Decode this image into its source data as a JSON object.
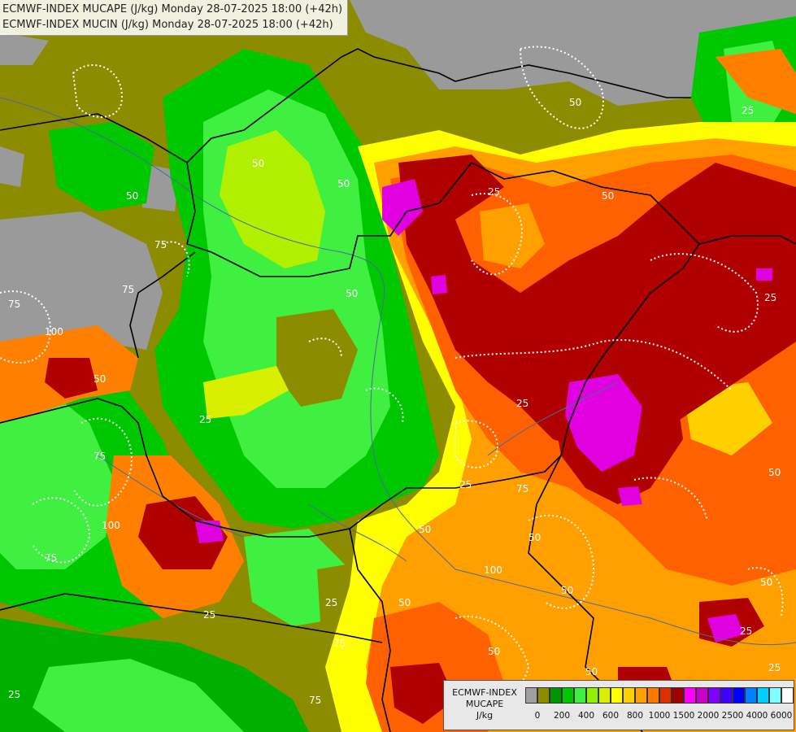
{
  "title": {
    "line1": "ECMWF-INDEX MUCAPE (J/kg) Monday 28-07-2025 18:00 (+42h)",
    "line2": "ECMWF-INDEX MUCIN (J/kg) Monday 28-07-2025 18:00 (+42h)"
  },
  "legend": {
    "title1": "ECMWF-INDEX",
    "title2": "MUCAPE",
    "unit": "J/kg",
    "colors": [
      "#a0a0a0",
      "#8c8c00",
      "#009600",
      "#00c800",
      "#40f040",
      "#90f000",
      "#d8f000",
      "#ffff00",
      "#ffd000",
      "#ffa000",
      "#ff7800",
      "#e03000",
      "#a00000",
      "#ff00ff",
      "#c800c8",
      "#8000ff",
      "#4000ff",
      "#0000ff",
      "#0080ff",
      "#00d0ff",
      "#80ffff",
      "#ffffff"
    ],
    "ticks": [
      "0",
      "200",
      "400",
      "600",
      "800",
      "1000",
      "1500",
      "2000",
      "2500",
      "4000",
      "6000"
    ]
  },
  "contour_labels": [
    "50",
    "25",
    "50",
    "75",
    "50",
    "25",
    "50",
    "75",
    "100",
    "50",
    "25",
    "25",
    "50",
    "50",
    "75",
    "100",
    "75",
    "25",
    "50",
    "75",
    "25",
    "50",
    "25",
    "75",
    "100",
    "75",
    "50",
    "50",
    "25",
    "75",
    "50",
    "50",
    "25",
    "50",
    "25",
    "50",
    "25"
  ],
  "colors": {
    "gray": "#9a9a9a",
    "olive": "#8c8c00",
    "dark_green": "#009600",
    "green": "#00d000",
    "light_green": "#40f040",
    "lime": "#b0f000",
    "yellow": "#ffff00",
    "orange": "#ffa000",
    "red_orange": "#ff6000",
    "dark_red": "#b00000",
    "magenta": "#e000e0"
  }
}
